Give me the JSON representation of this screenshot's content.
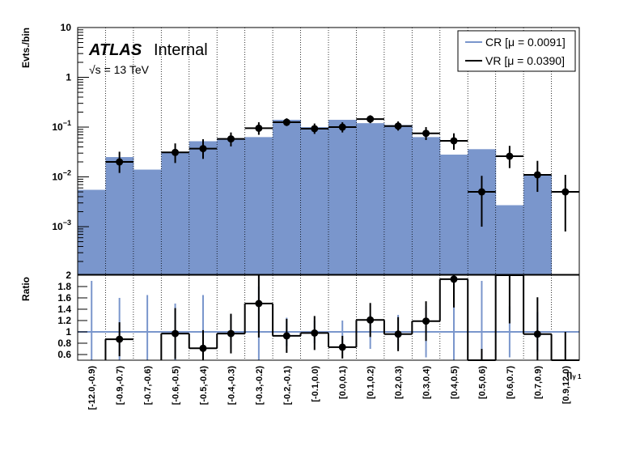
{
  "chart_data": {
    "type": "bar",
    "categories": [
      "[-12.0,-0.9)",
      "[-0.9,-0.7)",
      "[-0.7,-0.6)",
      "[-0.6,-0.5)",
      "[-0.5,-0.4)",
      "[-0.4,-0.3)",
      "[-0.3,-0.2)",
      "[-0.2,-0.1)",
      "[-0.1,0.0)",
      "[0.0,0.1)",
      "[0.1,0.2)",
      "[0.2,0.3)",
      "[0.3,0.4)",
      "[0.4,0.5)",
      "[0.5,0.6)",
      "[0.6,0.7)",
      "[0.7,0.9)",
      "[0.9,12.0)"
    ],
    "series": [
      {
        "name": "CR [μ = 0.0091]",
        "color": "#7a96cc",
        "values": [
          0.0055,
          0.025,
          0.014,
          0.032,
          0.052,
          0.06,
          0.063,
          0.14,
          0.1,
          0.14,
          0.12,
          0.11,
          0.063,
          0.028,
          0.036,
          0.0027,
          0.011,
          0.0001
        ]
      },
      {
        "name": "VR [μ = 0.0390]",
        "color": "#000000",
        "values": [
          null,
          0.02,
          null,
          0.031,
          0.037,
          0.058,
          0.095,
          0.125,
          0.093,
          0.1,
          0.145,
          0.105,
          0.075,
          0.053,
          0.005,
          0.026,
          0.011,
          0.005
        ],
        "err_lo": [
          null,
          0.008,
          null,
          0.012,
          0.014,
          0.017,
          0.025,
          0.02,
          0.02,
          0.022,
          0.025,
          0.02,
          0.02,
          0.018,
          0.004,
          0.011,
          0.006,
          0.0042
        ],
        "err_hi": [
          null,
          0.012,
          null,
          0.016,
          0.02,
          0.02,
          0.03,
          0.025,
          0.025,
          0.025,
          0.028,
          0.025,
          0.025,
          0.022,
          0.0055,
          0.016,
          0.01,
          0.006
        ]
      }
    ],
    "ratio": {
      "values": [
        null,
        0.87,
        null,
        0.97,
        0.71,
        0.97,
        1.5,
        0.93,
        0.98,
        0.73,
        1.21,
        0.96,
        1.19,
        1.93,
        0.2,
        2.05,
        0.96,
        0.5
      ],
      "err": [
        null,
        0.3,
        null,
        0.45,
        0.32,
        0.35,
        0.6,
        0.3,
        0.3,
        0.2,
        0.3,
        0.3,
        0.35,
        0.5,
        0.5,
        0.9,
        0.65,
        0.5
      ],
      "cr_err": [
        0.9,
        0.6,
        0.65,
        0.5,
        0.65,
        0.3,
        0.8,
        0.25,
        0.2,
        0.2,
        0.3,
        0.3,
        0.45,
        1.2,
        0.9,
        0.45,
        0.35,
        0.0
      ],
      "ylim": [
        0.5,
        2.0
      ],
      "yticks": [
        0.6,
        0.8,
        1,
        1.2,
        1.4,
        1.6,
        1.8,
        2
      ],
      "ytick_labels": [
        "0.6",
        "0.8",
        "1",
        "1.2",
        "1.4",
        "1.6",
        "1.8",
        "2"
      ]
    },
    "ylabel": "Evts./bin",
    "ratio_ylabel": "Ratio",
    "xlabel": "η_γ1",
    "xlabel_display": "η",
    "xlabel_sub": "γ 1",
    "ylim": [
      0.00011,
      10
    ],
    "ylog": true,
    "yticks": [
      0.001,
      0.01,
      0.1,
      1,
      10
    ],
    "ytick_labels": [
      {
        "base": "10",
        "exp": "−3"
      },
      {
        "base": "10",
        "exp": "−2"
      },
      {
        "base": "10",
        "exp": "−1"
      },
      {
        "base": "1",
        "exp": ""
      },
      {
        "base": "10",
        "exp": ""
      }
    ],
    "grid": "vertical-dotted",
    "legend_placement": "top-right",
    "experiment_label": "ATLAS",
    "status_label": "Internal",
    "energy_label": "√s = 13 TeV"
  }
}
